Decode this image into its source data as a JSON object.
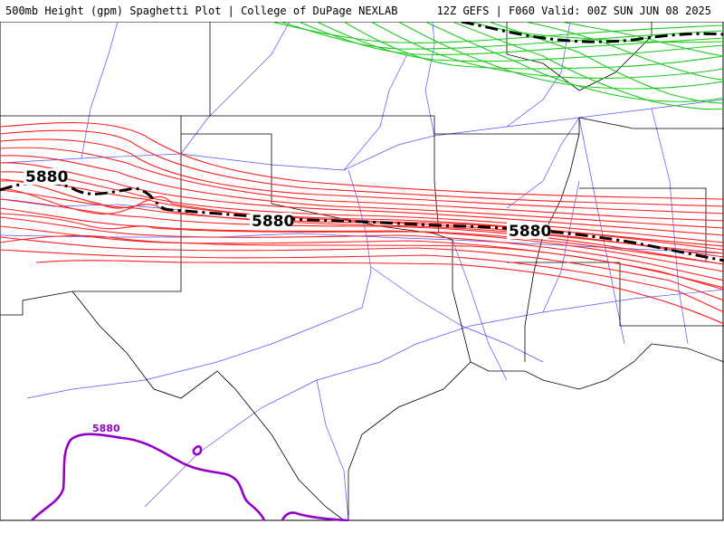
{
  "header": {
    "left": "500mb Height (gpm) Spaghetti Plot | College of DuPage NEXLAB",
    "right": "12Z GEFS | F060 Valid: 00Z SUN JUN 08 2025"
  },
  "contours": {
    "mean_label": "5880",
    "purple_label": "5880"
  },
  "colors": {
    "ensemble_red": "#ff2020",
    "ensemble_green": "#1ccc1c",
    "mean_line": "#000000",
    "purple_contour": "#9400c8",
    "highways": "#5050ff",
    "borders": "#000000"
  }
}
